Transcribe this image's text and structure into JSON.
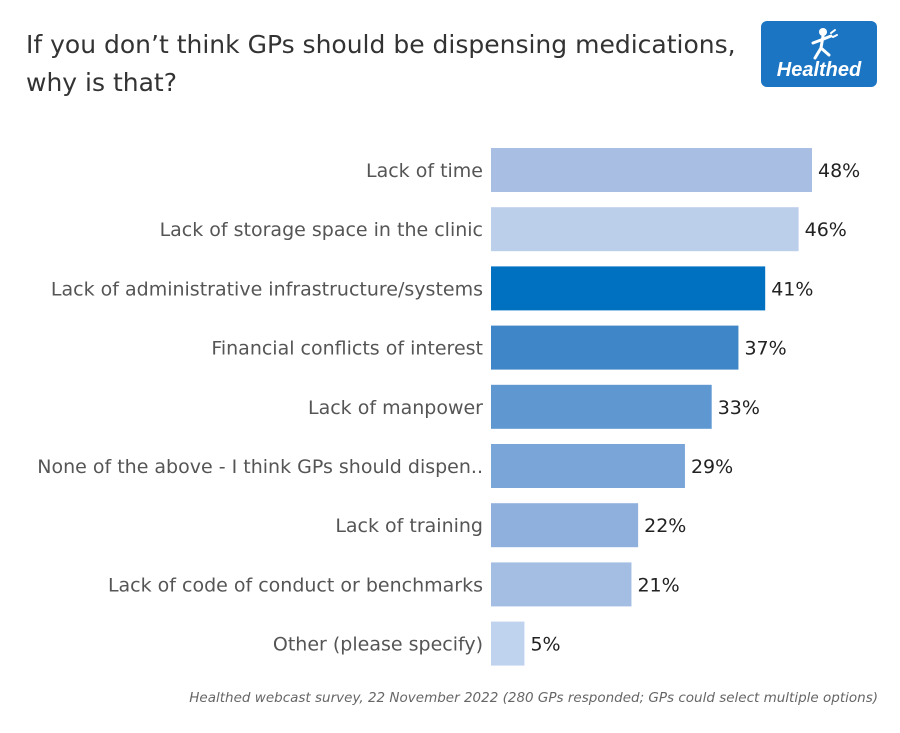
{
  "chart_data": {
    "type": "bar",
    "orientation": "horizontal",
    "title": "If you don’t think GPs should be dispensing medications, why is that?",
    "categories": [
      "Lack of time",
      "Lack of storage space in the clinic",
      "Lack of administrative infrastructure/systems",
      "Financial conflicts of interest",
      "Lack of manpower",
      "None of the above - I think GPs should dispen..",
      "Lack of training",
      "Lack of code of conduct or benchmarks",
      "Other (please specify)"
    ],
    "values": [
      48,
      46,
      41,
      37,
      33,
      29,
      22,
      21,
      5
    ],
    "value_labels": [
      "48%",
      "46%",
      "41%",
      "37%",
      "33%",
      "29%",
      "22%",
      "21%",
      "5%"
    ],
    "colors": [
      "#a8bfe3",
      "#bccfea",
      "#0070c0",
      "#3f86c8",
      "#5f97d1",
      "#7aa5d8",
      "#8fb0dd",
      "#a3bde3",
      "#c0d3ee"
    ],
    "xlim": [
      0,
      48
    ],
    "grid": false,
    "legend": "none"
  },
  "logo": {
    "text": "Healthed"
  },
  "footnote": "Healthed webcast survey, 22 November 2022 (280 GPs responded; GPs could select multiple options)"
}
